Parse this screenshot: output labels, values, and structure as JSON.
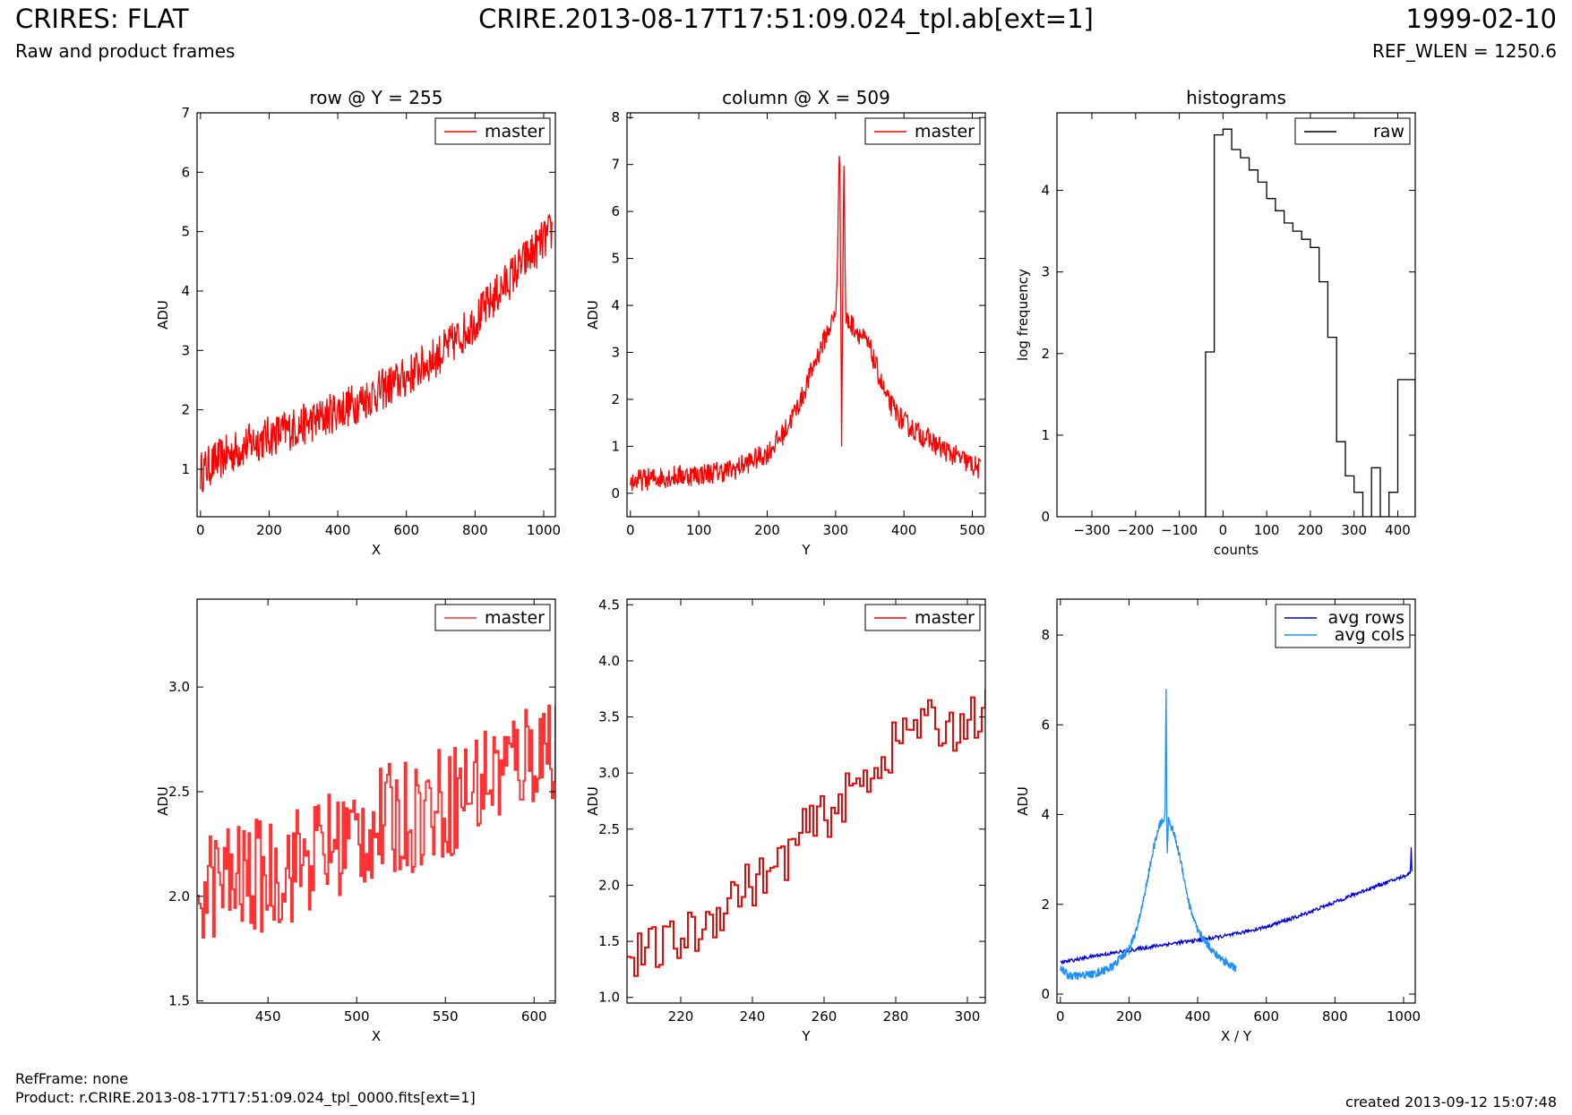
{
  "header": {
    "title": "CRIRES: FLAT",
    "subtitle": "Raw and product frames",
    "file": "CRIRE.2013-08-17T17:51:09.024_tpl.ab[ext=1]",
    "date": "1999-02-10",
    "ref_wlen": "REF_WLEN = 1250.6"
  },
  "footer": {
    "refframe": "RefFrame: none",
    "product": "Product: r.CRIRE.2013-08-17T17:51:09.024_tpl_0000.fits[ext=1]",
    "created": "created 2013-09-12 15:07:48"
  },
  "colors": {
    "master": "#ff0000",
    "master_zoom": "#ff3333",
    "raw": "#000000",
    "avg_rows": "#0000dd",
    "avg_cols": "#1e90ff"
  },
  "chart_data": [
    {
      "id": "row-plot",
      "type": "line",
      "title": "row @ Y = 255",
      "xlabel": "X",
      "ylabel": "ADU",
      "xlim": [
        -10,
        1034
      ],
      "ylim": [
        0.2,
        7
      ],
      "xticks": [
        0,
        200,
        400,
        600,
        800,
        1000
      ],
      "yticks": [
        1,
        2,
        3,
        4,
        5,
        6,
        7
      ],
      "legend": "top-right",
      "series": [
        {
          "name": "master",
          "color": "#ff0000",
          "x": [
            0,
            50,
            100,
            150,
            200,
            250,
            300,
            350,
            400,
            450,
            500,
            550,
            600,
            650,
            700,
            750,
            800,
            850,
            900,
            950,
            1000,
            1024
          ],
          "y": [
            0.95,
            1.15,
            1.3,
            1.45,
            1.55,
            1.65,
            1.75,
            1.85,
            2.0,
            2.1,
            2.25,
            2.4,
            2.55,
            2.75,
            2.95,
            3.2,
            3.5,
            3.85,
            4.2,
            4.55,
            4.85,
            5.0
          ],
          "noise": 0.45,
          "style": "noisy"
        }
      ]
    },
    {
      "id": "column-plot",
      "type": "line",
      "title": "column @ X = 509",
      "xlabel": "Y",
      "ylabel": "ADU",
      "xlim": [
        -5,
        519
      ],
      "ylim": [
        -0.5,
        8.1
      ],
      "xticks": [
        0,
        100,
        200,
        300,
        400,
        500
      ],
      "yticks": [
        0,
        1,
        2,
        3,
        4,
        5,
        6,
        7,
        8
      ],
      "legend": "top-right",
      "series": [
        {
          "name": "master",
          "color": "#ff0000",
          "x": [
            0,
            25,
            50,
            100,
            150,
            200,
            225,
            250,
            270,
            290,
            300,
            303,
            306,
            309,
            312,
            315,
            330,
            350,
            375,
            400,
            450,
            512
          ],
          "y": [
            0.25,
            0.3,
            0.35,
            0.4,
            0.5,
            0.85,
            1.3,
            2.0,
            2.8,
            3.5,
            3.8,
            5.0,
            7.8,
            1.0,
            7.35,
            3.7,
            3.5,
            3.1,
            2.0,
            1.5,
            1.0,
            0.5
          ],
          "noise": 0.3,
          "style": "noisy"
        }
      ]
    },
    {
      "id": "histogram-plot",
      "type": "line",
      "title": "histograms",
      "xlabel": "counts",
      "ylabel": "log frequency",
      "xlim": [
        -380,
        440
      ],
      "ylim": [
        0,
        4.95
      ],
      "xticks": [
        -300,
        -200,
        -100,
        0,
        100,
        200,
        300,
        400
      ],
      "yticks": [
        0,
        1,
        2,
        3,
        4
      ],
      "legend": "top-right",
      "series": [
        {
          "name": "raw",
          "color": "#000000",
          "x": [
            -40,
            -20,
            0,
            20,
            40,
            60,
            80,
            100,
            120,
            140,
            160,
            180,
            200,
            220,
            240,
            260,
            280,
            300,
            320,
            340,
            360,
            380,
            400,
            420
          ],
          "y": [
            2.02,
            4.68,
            4.75,
            4.5,
            4.4,
            4.25,
            4.1,
            3.9,
            3.75,
            3.6,
            3.5,
            3.4,
            3.3,
            2.88,
            2.2,
            0.92,
            0.5,
            0.3,
            0.0,
            0.6,
            0.0,
            0.3,
            1.68,
            1.68
          ],
          "style": "step"
        }
      ]
    },
    {
      "id": "row-zoom-plot",
      "type": "line",
      "title": "",
      "xlabel": "X",
      "ylabel": "ADU",
      "xlim": [
        410,
        612
      ],
      "ylim": [
        1.49,
        3.42
      ],
      "xticks": [
        450,
        500,
        550,
        600
      ],
      "yticks": [
        1.5,
        2.0,
        2.5,
        3.0
      ],
      "legend": "top-right",
      "series": [
        {
          "name": "master",
          "color": "#ff3333",
          "x": [
            410,
            450,
            500,
            550,
            600,
            612
          ],
          "y": [
            2.05,
            2.1,
            2.3,
            2.45,
            2.7,
            2.75
          ],
          "noise": 0.28,
          "style": "step-noisy"
        }
      ]
    },
    {
      "id": "column-zoom-plot",
      "type": "line",
      "title": "",
      "xlabel": "Y",
      "ylabel": "ADU",
      "xlim": [
        205,
        305
      ],
      "ylim": [
        0.95,
        4.55
      ],
      "xticks": [
        220,
        240,
        260,
        280,
        300
      ],
      "yticks": [
        1.0,
        1.5,
        2.0,
        2.5,
        3.0,
        3.5,
        4.0,
        4.5
      ],
      "legend": "top-right",
      "series": [
        {
          "name": "master",
          "color": "#ff0000",
          "x": [
            205,
            215,
            225,
            235,
            245,
            255,
            265,
            275,
            285,
            295,
            305
          ],
          "y": [
            1.35,
            1.45,
            1.6,
            1.95,
            2.1,
            2.5,
            2.75,
            3.1,
            3.45,
            3.4,
            3.55
          ],
          "noise": 0.22,
          "style": "step-noisy"
        }
      ]
    },
    {
      "id": "average-plot",
      "type": "line",
      "title": "",
      "xlabel": "X / Y",
      "ylabel": "ADU",
      "xlim": [
        -10,
        1034
      ],
      "ylim": [
        -0.2,
        8.8
      ],
      "xticks": [
        0,
        200,
        400,
        600,
        800,
        1000
      ],
      "yticks": [
        0,
        2,
        4,
        6,
        8
      ],
      "legend": "top-right",
      "series": [
        {
          "name": "avg rows",
          "color": "#0000dd",
          "x": [
            0,
            100,
            200,
            300,
            400,
            500,
            600,
            700,
            800,
            900,
            1000,
            1020,
            1022,
            1024
          ],
          "y": [
            0.7,
            0.85,
            0.97,
            1.1,
            1.2,
            1.32,
            1.5,
            1.75,
            2.05,
            2.35,
            2.62,
            2.7,
            3.4,
            2.7
          ],
          "noise": 0.05,
          "style": "noisy"
        },
        {
          "name": "avg cols",
          "color": "#1e90ff",
          "x": [
            0,
            25,
            50,
            100,
            150,
            200,
            225,
            250,
            270,
            290,
            300,
            305,
            308,
            311,
            315,
            330,
            350,
            375,
            400,
            450,
            512
          ],
          "y": [
            0.6,
            0.4,
            0.4,
            0.45,
            0.6,
            1.0,
            1.5,
            2.4,
            3.2,
            3.8,
            3.85,
            4.0,
            6.9,
            3.0,
            3.9,
            3.6,
            3.0,
            2.0,
            1.4,
            0.9,
            0.55
          ],
          "noise": 0.12,
          "style": "noisy"
        }
      ]
    }
  ]
}
